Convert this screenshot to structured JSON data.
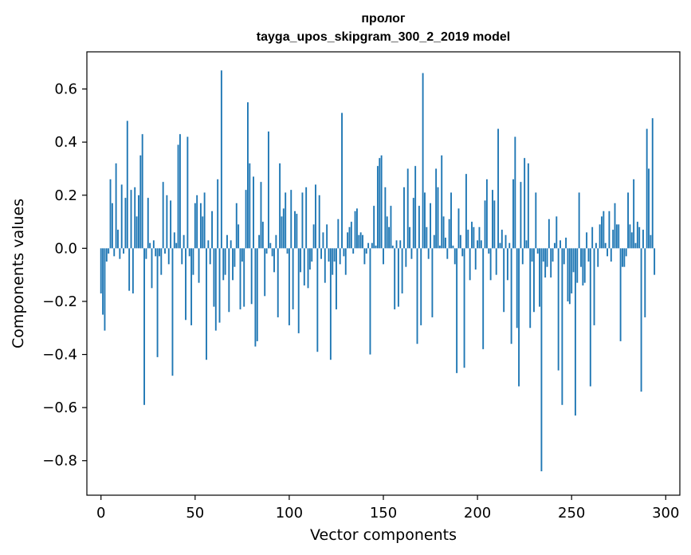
{
  "chart_data": {
    "type": "bar",
    "title_line1": "пролог",
    "title_line2": "tayga_upos_skipgram_300_2_2019 model",
    "xlabel": "Vector components",
    "ylabel": "Components values",
    "xlim": [
      -7.5,
      307.5
    ],
    "ylim": [
      -0.93,
      0.74
    ],
    "x_ticks": [
      0,
      50,
      100,
      150,
      200,
      250,
      300
    ],
    "x_tick_labels": [
      "0",
      "50",
      "100",
      "150",
      "200",
      "250",
      "300"
    ],
    "y_ticks": [
      -0.8,
      -0.6,
      -0.4,
      -0.2,
      0.0,
      0.2,
      0.4,
      0.6
    ],
    "y_tick_labels": [
      "−0.8",
      "−0.6",
      "−0.4",
      "−0.2",
      "0.0",
      "0.2",
      "0.4",
      "0.6"
    ],
    "color": "#1f77b4",
    "values": [
      -0.17,
      -0.25,
      -0.31,
      -0.05,
      -0.02,
      0.26,
      0.17,
      -0.03,
      0.32,
      0.07,
      -0.04,
      0.24,
      -0.02,
      0.19,
      0.48,
      -0.16,
      0.22,
      -0.17,
      0.23,
      0.12,
      0.2,
      0.35,
      0.43,
      -0.59,
      -0.04,
      0.19,
      0.02,
      -0.15,
      0.03,
      -0.03,
      -0.41,
      -0.03,
      -0.1,
      0.25,
      -0.02,
      0.2,
      -0.06,
      0.18,
      -0.48,
      0.06,
      0.02,
      0.39,
      0.43,
      -0.06,
      0.05,
      -0.27,
      0.42,
      -0.03,
      -0.29,
      -0.1,
      0.17,
      0.2,
      -0.13,
      0.17,
      0.12,
      0.21,
      -0.42,
      0.03,
      -0.06,
      0.14,
      -0.22,
      -0.31,
      0.26,
      -0.28,
      0.67,
      -0.12,
      -0.1,
      0.05,
      -0.24,
      0.03,
      -0.12,
      -0.07,
      0.17,
      0.09,
      -0.23,
      -0.05,
      -0.22,
      0.22,
      0.55,
      0.32,
      -0.21,
      0.27,
      -0.37,
      -0.35,
      0.05,
      0.25,
      0.1,
      -0.18,
      -0.02,
      0.44,
      0.02,
      -0.03,
      -0.09,
      0.05,
      -0.26,
      0.32,
      0.12,
      0.15,
      0.21,
      -0.02,
      -0.29,
      0.22,
      -0.23,
      0.14,
      0.13,
      -0.32,
      -0.09,
      0.21,
      -0.14,
      0.23,
      -0.15,
      -0.08,
      -0.05,
      0.09,
      0.24,
      -0.39,
      0.2,
      -0.04,
      0.06,
      -0.13,
      0.09,
      -0.05,
      -0.42,
      -0.1,
      -0.05,
      -0.23,
      0.11,
      -0.06,
      0.51,
      -0.03,
      -0.1,
      0.06,
      0.08,
      0.1,
      -0.02,
      0.14,
      0.15,
      0.05,
      0.06,
      0.05,
      -0.06,
      -0.02,
      0.02,
      -0.4,
      0.02,
      0.16,
      0.01,
      0.31,
      0.34,
      0.35,
      -0.06,
      0.23,
      0.12,
      0.08,
      0.16,
      0.01,
      -0.23,
      0.03,
      -0.22,
      0.03,
      -0.17,
      0.23,
      -0.07,
      0.3,
      0.08,
      -0.04,
      0.19,
      0.31,
      -0.36,
      0.16,
      -0.29,
      0.66,
      0.21,
      0.08,
      -0.04,
      0.17,
      -0.26,
      0.05,
      0.3,
      0.23,
      0.01,
      0.35,
      0.12,
      0.04,
      -0.04,
      0.11,
      0.21,
      0.01,
      -0.06,
      -0.47,
      0.15,
      0.05,
      -0.03,
      -0.45,
      0.28,
      0.07,
      -0.12,
      0.1,
      0.08,
      -0.08,
      0.03,
      0.08,
      0.03,
      -0.38,
      0.18,
      0.26,
      -0.02,
      -0.12,
      0.22,
      0.18,
      -0.1,
      0.45,
      0.02,
      0.07,
      -0.24,
      0.05,
      -0.12,
      0.02,
      -0.36,
      0.26,
      0.42,
      -0.3,
      -0.52,
      0.25,
      -0.06,
      0.34,
      0.03,
      0.32,
      -0.3,
      -0.05,
      -0.24,
      0.21,
      -0.02,
      -0.22,
      -0.84,
      -0.05,
      -0.11,
      -0.07,
      0.11,
      -0.11,
      -0.05,
      0.02,
      0.12,
      -0.46,
      0.03,
      -0.59,
      -0.06,
      0.04,
      -0.2,
      -0.21,
      -0.17,
      -0.09,
      -0.63,
      -0.13,
      0.21,
      -0.07,
      -0.14,
      -0.13,
      0.06,
      -0.05,
      -0.52,
      0.08,
      -0.29,
      0.02,
      -0.07,
      0.09,
      0.12,
      0.14,
      0.02,
      -0.03,
      0.14,
      -0.05,
      0.07,
      0.17,
      0.09,
      0.09,
      -0.35,
      -0.07,
      -0.07,
      -0.03,
      0.21,
      0.09,
      0.06,
      0.26,
      0.02,
      0.1,
      0.08,
      -0.54,
      0.07,
      -0.26,
      0.45,
      0.3,
      0.05,
      0.49,
      -0.1
    ]
  }
}
